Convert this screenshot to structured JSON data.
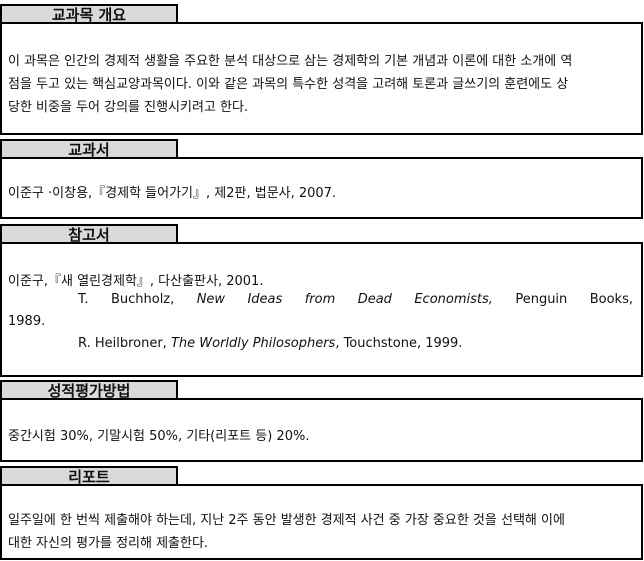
{
  "overview": {
    "title": "교과목 개요",
    "lines": [
      "이 과목은 인간의 경제적 생활을 주요한 분석 대상으로 삼는 경제학의 기본 개념과 이론에 대한 소개에 역",
      "점을 두고 있는 핵심교양과목이다. 이와 같은 과목의 특수한 성격을 고려해 토론과 글쓰기의 훈련에도 상",
      "당한 비중을 두어 강의를 진행시키려고 한다."
    ]
  },
  "textbook": {
    "title": "교과서",
    "text": "이준구 ·이창용,『경제학 들어가기』, 제2판, 법문사, 2007."
  },
  "references": {
    "title": "참고서",
    "ref1": "이준구,『새 열린경제학』, 다산출판사, 2001.",
    "ref2_words": [
      "T.",
      "Buchholz,",
      "New",
      "Ideas",
      "from",
      "Dead",
      "Economists,",
      "Penguin",
      "Books,"
    ],
    "ref2_cont": "1989.",
    "ref3_author": "R. Heilbroner,",
    "ref3_title": "The Worldly Philosophers",
    "ref3_rest": ", Touchstone, 1999."
  },
  "grading": {
    "title": "성적평가방법",
    "text": "중간시험 30%, 기말시험 50%, 기타(리포트 등) 20%."
  },
  "report": {
    "title": "리포트",
    "lines": [
      "일주일에 한 번씩 제출해야 하는데, 지난 2주 동안 발생한 경제적 사건 중 가장 중요한 것을 선택해 이에",
      "대한 자신의 평가를 정리해 제출한다."
    ]
  }
}
